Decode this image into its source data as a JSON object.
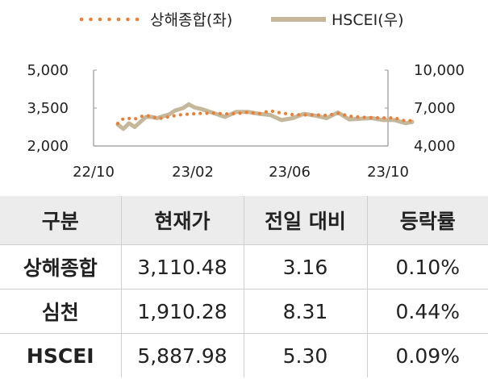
{
  "chart_data": {
    "type": "line",
    "x_ticks": [
      "22/10",
      "23/02",
      "23/06",
      "23/10"
    ],
    "y_left": {
      "range": [
        2000,
        5000
      ],
      "ticks": [
        "2,000",
        "3,500",
        "5,000"
      ]
    },
    "y_right": {
      "range": [
        4000,
        10000
      ],
      "ticks": [
        "4,000",
        "7,000",
        "10,000"
      ]
    },
    "series": [
      {
        "name": "상해종합(좌)",
        "axis": "left",
        "style": "dotted",
        "color": "#e8803a",
        "points": [
          [
            "2022-10-31",
            2890
          ],
          [
            "2022-11-07",
            3080
          ],
          [
            "2022-11-14",
            3090
          ],
          [
            "2022-11-21",
            3060
          ],
          [
            "2022-11-28",
            3160
          ],
          [
            "2022-12-05",
            3210
          ],
          [
            "2022-12-12",
            3170
          ],
          [
            "2022-12-19",
            3080
          ],
          [
            "2022-12-26",
            3100
          ],
          [
            "2023-01-03",
            3160
          ],
          [
            "2023-01-16",
            3230
          ],
          [
            "2023-01-30",
            3270
          ],
          [
            "2023-02-13",
            3290
          ],
          [
            "2023-02-27",
            3300
          ],
          [
            "2023-03-13",
            3270
          ],
          [
            "2023-03-27",
            3280
          ],
          [
            "2023-04-10",
            3330
          ],
          [
            "2023-04-24",
            3280
          ],
          [
            "2023-05-08",
            3390
          ],
          [
            "2023-05-22",
            3300
          ],
          [
            "2023-06-05",
            3240
          ],
          [
            "2023-06-19",
            3230
          ],
          [
            "2023-07-03",
            3230
          ],
          [
            "2023-07-17",
            3210
          ],
          [
            "2023-07-31",
            3290
          ],
          [
            "2023-08-14",
            3180
          ],
          [
            "2023-08-28",
            3140
          ],
          [
            "2023-09-11",
            3120
          ],
          [
            "2023-09-25",
            3110
          ],
          [
            "2023-10-09",
            3110
          ],
          [
            "2023-10-23",
            2990
          ],
          [
            "2023-10-31",
            3010
          ]
        ]
      },
      {
        "name": "HSCEI(우)",
        "axis": "right",
        "style": "solid",
        "color": "#c5b79a",
        "points": [
          [
            "2022-10-31",
            5700
          ],
          [
            "2022-11-07",
            5350
          ],
          [
            "2022-11-14",
            5800
          ],
          [
            "2022-11-21",
            5500
          ],
          [
            "2022-11-28",
            5900
          ],
          [
            "2022-12-05",
            6300
          ],
          [
            "2022-12-12",
            6300
          ],
          [
            "2022-12-19",
            6200
          ],
          [
            "2022-12-26",
            6350
          ],
          [
            "2023-01-03",
            6500
          ],
          [
            "2023-01-10",
            6800
          ],
          [
            "2023-01-20",
            7000
          ],
          [
            "2023-01-27",
            7300
          ],
          [
            "2023-02-03",
            7050
          ],
          [
            "2023-02-13",
            6900
          ],
          [
            "2023-02-27",
            6600
          ],
          [
            "2023-03-13",
            6300
          ],
          [
            "2023-03-27",
            6700
          ],
          [
            "2023-04-10",
            6700
          ],
          [
            "2023-04-24",
            6550
          ],
          [
            "2023-05-08",
            6450
          ],
          [
            "2023-05-22",
            6050
          ],
          [
            "2023-06-05",
            6200
          ],
          [
            "2023-06-19",
            6550
          ],
          [
            "2023-07-03",
            6400
          ],
          [
            "2023-07-17",
            6200
          ],
          [
            "2023-07-31",
            6650
          ],
          [
            "2023-08-14",
            6100
          ],
          [
            "2023-08-28",
            6150
          ],
          [
            "2023-09-11",
            6200
          ],
          [
            "2023-09-25",
            6050
          ],
          [
            "2023-10-09",
            6050
          ],
          [
            "2023-10-23",
            5800
          ],
          [
            "2023-10-31",
            5900
          ]
        ]
      }
    ]
  },
  "table": {
    "headers": [
      "구분",
      "현재가",
      "전일 대비",
      "등락률"
    ],
    "rows": [
      [
        "상해종합",
        "3,110.48",
        "3.16",
        "0.10%"
      ],
      [
        "심천",
        "1,910.28",
        "8.31",
        "0.44%"
      ],
      [
        "HSCEI",
        "5,887.98",
        "5.30",
        "0.09%"
      ]
    ]
  }
}
